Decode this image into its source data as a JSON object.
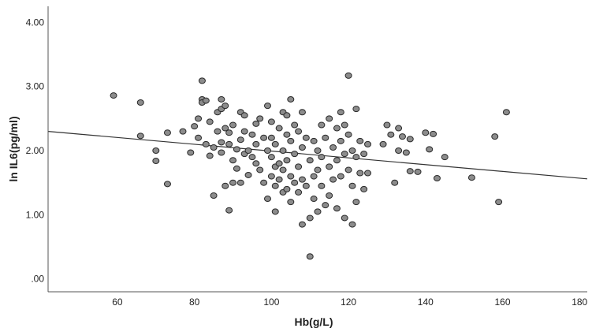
{
  "chart_data": {
    "type": "scatter",
    "xlabel": "Hb(g/L)",
    "ylabel": "ln IL6(pg/ml)",
    "xlim": [
      42,
      182
    ],
    "ylim": [
      -0.2,
      4.25
    ],
    "x_ticks": [
      "60",
      "80",
      "100",
      "120",
      "140",
      "160",
      "180"
    ],
    "y_ticks": [
      ".00",
      "1.00",
      "2.00",
      "3.00",
      "4.00"
    ],
    "grid": false,
    "legend": "none",
    "colors": {
      "point_fill": "#8c8c8c",
      "point_stroke": "#2a2a2a",
      "line": "#333333",
      "axis": "#555555"
    },
    "fit_line": {
      "x": [
        42,
        182
      ],
      "y": [
        2.3,
        1.56
      ]
    },
    "points": [
      [
        59,
        2.86
      ],
      [
        66,
        2.75
      ],
      [
        66,
        2.23
      ],
      [
        70,
        2.0
      ],
      [
        70,
        1.84
      ],
      [
        73,
        2.28
      ],
      [
        73,
        1.48
      ],
      [
        77,
        2.3
      ],
      [
        79,
        1.97
      ],
      [
        80,
        2.38
      ],
      [
        81,
        2.5
      ],
      [
        81,
        2.2
      ],
      [
        82,
        3.09
      ],
      [
        82,
        2.8
      ],
      [
        82,
        2.75
      ],
      [
        83,
        2.78
      ],
      [
        83,
        2.1
      ],
      [
        84,
        2.45
      ],
      [
        84,
        1.92
      ],
      [
        85,
        2.05
      ],
      [
        85,
        1.3
      ],
      [
        86,
        2.6
      ],
      [
        86,
        2.3
      ],
      [
        87,
        2.8
      ],
      [
        87,
        2.65
      ],
      [
        87,
        2.13
      ],
      [
        87,
        1.97
      ],
      [
        88,
        2.7
      ],
      [
        88,
        2.35
      ],
      [
        88,
        1.45
      ],
      [
        89,
        2.28
      ],
      [
        89,
        2.1
      ],
      [
        89,
        1.07
      ],
      [
        90,
        2.4
      ],
      [
        90,
        1.85
      ],
      [
        90,
        1.5
      ],
      [
        91,
        2.02
      ],
      [
        91,
        1.72
      ],
      [
        92,
        2.6
      ],
      [
        92,
        2.17
      ],
      [
        92,
        1.5
      ],
      [
        93,
        2.55
      ],
      [
        93,
        2.3
      ],
      [
        93,
        1.95
      ],
      [
        94,
        2.0
      ],
      [
        94,
        1.62
      ],
      [
        95,
        2.25
      ],
      [
        95,
        1.9
      ],
      [
        96,
        2.42
      ],
      [
        96,
        2.1
      ],
      [
        96,
        1.8
      ],
      [
        97,
        2.5
      ],
      [
        97,
        1.7
      ],
      [
        98,
        2.2
      ],
      [
        98,
        1.5
      ],
      [
        99,
        2.7
      ],
      [
        99,
        2.0
      ],
      [
        99,
        1.25
      ],
      [
        100,
        2.45
      ],
      [
        100,
        2.2
      ],
      [
        100,
        1.9
      ],
      [
        100,
        1.6
      ],
      [
        101,
        2.1
      ],
      [
        101,
        1.75
      ],
      [
        101,
        1.45
      ],
      [
        101,
        1.05
      ],
      [
        102,
        2.35
      ],
      [
        102,
        1.8
      ],
      [
        102,
        1.55
      ],
      [
        103,
        2.6
      ],
      [
        103,
        2.0
      ],
      [
        103,
        1.7
      ],
      [
        103,
        1.35
      ],
      [
        104,
        2.55
      ],
      [
        104,
        2.25
      ],
      [
        104,
        1.85
      ],
      [
        104,
        1.4
      ],
      [
        105,
        2.8
      ],
      [
        105,
        2.15
      ],
      [
        105,
        1.6
      ],
      [
        105,
        1.2
      ],
      [
        106,
        2.4
      ],
      [
        106,
        1.95
      ],
      [
        106,
        1.5
      ],
      [
        107,
        2.3
      ],
      [
        107,
        1.75
      ],
      [
        107,
        1.35
      ],
      [
        108,
        2.6
      ],
      [
        108,
        2.05
      ],
      [
        108,
        1.55
      ],
      [
        108,
        0.85
      ],
      [
        109,
        2.2
      ],
      [
        109,
        1.45
      ],
      [
        110,
        1.85
      ],
      [
        110,
        0.35
      ],
      [
        110,
        0.95
      ],
      [
        111,
        2.15
      ],
      [
        111,
        1.6
      ],
      [
        111,
        1.25
      ],
      [
        112,
        2.0
      ],
      [
        112,
        1.7
      ],
      [
        112,
        1.05
      ],
      [
        113,
        2.4
      ],
      [
        113,
        1.9
      ],
      [
        113,
        1.45
      ],
      [
        114,
        2.2
      ],
      [
        114,
        1.15
      ],
      [
        115,
        2.5
      ],
      [
        115,
        1.75
      ],
      [
        115,
        1.3
      ],
      [
        116,
        2.05
      ],
      [
        116,
        1.55
      ],
      [
        117,
        2.35
      ],
      [
        117,
        1.85
      ],
      [
        117,
        1.1
      ],
      [
        118,
        2.6
      ],
      [
        118,
        2.15
      ],
      [
        118,
        1.6
      ],
      [
        119,
        2.4
      ],
      [
        119,
        1.95
      ],
      [
        119,
        0.95
      ],
      [
        120,
        3.17
      ],
      [
        120,
        2.25
      ],
      [
        120,
        1.7
      ],
      [
        121,
        2.0
      ],
      [
        121,
        1.45
      ],
      [
        121,
        0.85
      ],
      [
        122,
        2.65
      ],
      [
        122,
        1.9
      ],
      [
        122,
        1.2
      ],
      [
        123,
        2.15
      ],
      [
        123,
        1.65
      ],
      [
        124,
        1.95
      ],
      [
        124,
        1.4
      ],
      [
        125,
        2.1
      ],
      [
        125,
        1.65
      ],
      [
        129,
        2.1
      ],
      [
        130,
        2.4
      ],
      [
        131,
        2.25
      ],
      [
        132,
        1.5
      ],
      [
        133,
        2.35
      ],
      [
        133,
        2.0
      ],
      [
        134,
        2.22
      ],
      [
        135,
        1.97
      ],
      [
        136,
        2.18
      ],
      [
        136,
        1.68
      ],
      [
        138,
        1.67
      ],
      [
        140,
        2.28
      ],
      [
        141,
        2.02
      ],
      [
        142,
        2.26
      ],
      [
        143,
        1.57
      ],
      [
        145,
        1.9
      ],
      [
        152,
        1.58
      ],
      [
        158,
        2.22
      ],
      [
        159,
        1.2
      ],
      [
        161,
        2.6
      ]
    ]
  }
}
